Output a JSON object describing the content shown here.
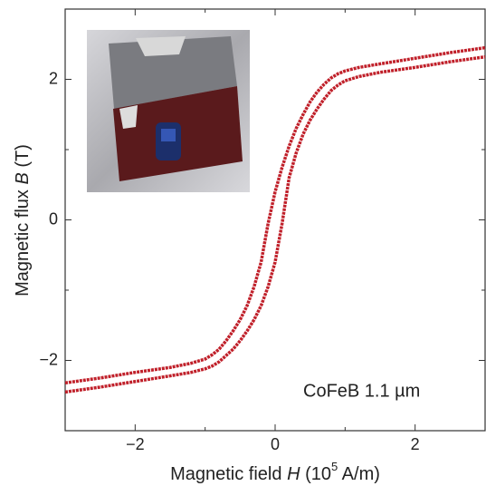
{
  "chart_data": {
    "type": "line",
    "x_label": [
      "Magnetic field ",
      "H",
      " (10",
      "5",
      " A/m)"
    ],
    "y_label": [
      "Magnetic flux ",
      "B",
      " (T)"
    ],
    "annotation": "CoFeB 1.1 µm",
    "xlim": [
      -3,
      3
    ],
    "ylim": [
      -3,
      3
    ],
    "xticks": [
      {
        "value": -2,
        "label": "−2"
      },
      0,
      2
    ],
    "yticks": [
      {
        "value": -2,
        "label": "−2"
      },
      0,
      2
    ],
    "xticks_minor": [
      -1,
      1
    ],
    "yticks_minor": [
      -1,
      1
    ],
    "x": [
      -3,
      -2.5,
      -2,
      -1.5,
      -1.2,
      -1.0,
      -0.9,
      -0.8,
      -0.7,
      -0.6,
      -0.5,
      -0.4,
      -0.3,
      -0.2,
      -0.1,
      0,
      0.1,
      0.2,
      0.3,
      0.4,
      0.5,
      0.6,
      0.7,
      0.8,
      0.9,
      1.0,
      1.2,
      1.5,
      2,
      2.5,
      3
    ],
    "series": [
      {
        "color": "#c0202a",
        "values": [
          -2.32,
          -2.25,
          -2.17,
          -2.1,
          -2.04,
          -1.98,
          -1.92,
          -1.84,
          -1.72,
          -1.58,
          -1.42,
          -1.22,
          -0.95,
          -0.6,
          -0.05,
          0.4,
          0.75,
          1.05,
          1.3,
          1.5,
          1.68,
          1.82,
          1.93,
          2.02,
          2.08,
          2.12,
          2.17,
          2.22,
          2.3,
          2.38,
          2.45
        ]
      },
      {
        "color": "#c0202a",
        "values": [
          -2.45,
          -2.38,
          -2.3,
          -2.22,
          -2.17,
          -2.12,
          -2.08,
          -2.02,
          -1.93,
          -1.84,
          -1.72,
          -1.58,
          -1.42,
          -1.22,
          -0.95,
          -0.6,
          -0.05,
          0.6,
          0.95,
          1.22,
          1.42,
          1.58,
          1.72,
          1.84,
          1.92,
          1.98,
          2.04,
          2.1,
          2.17,
          2.25,
          2.32
        ]
      }
    ]
  }
}
